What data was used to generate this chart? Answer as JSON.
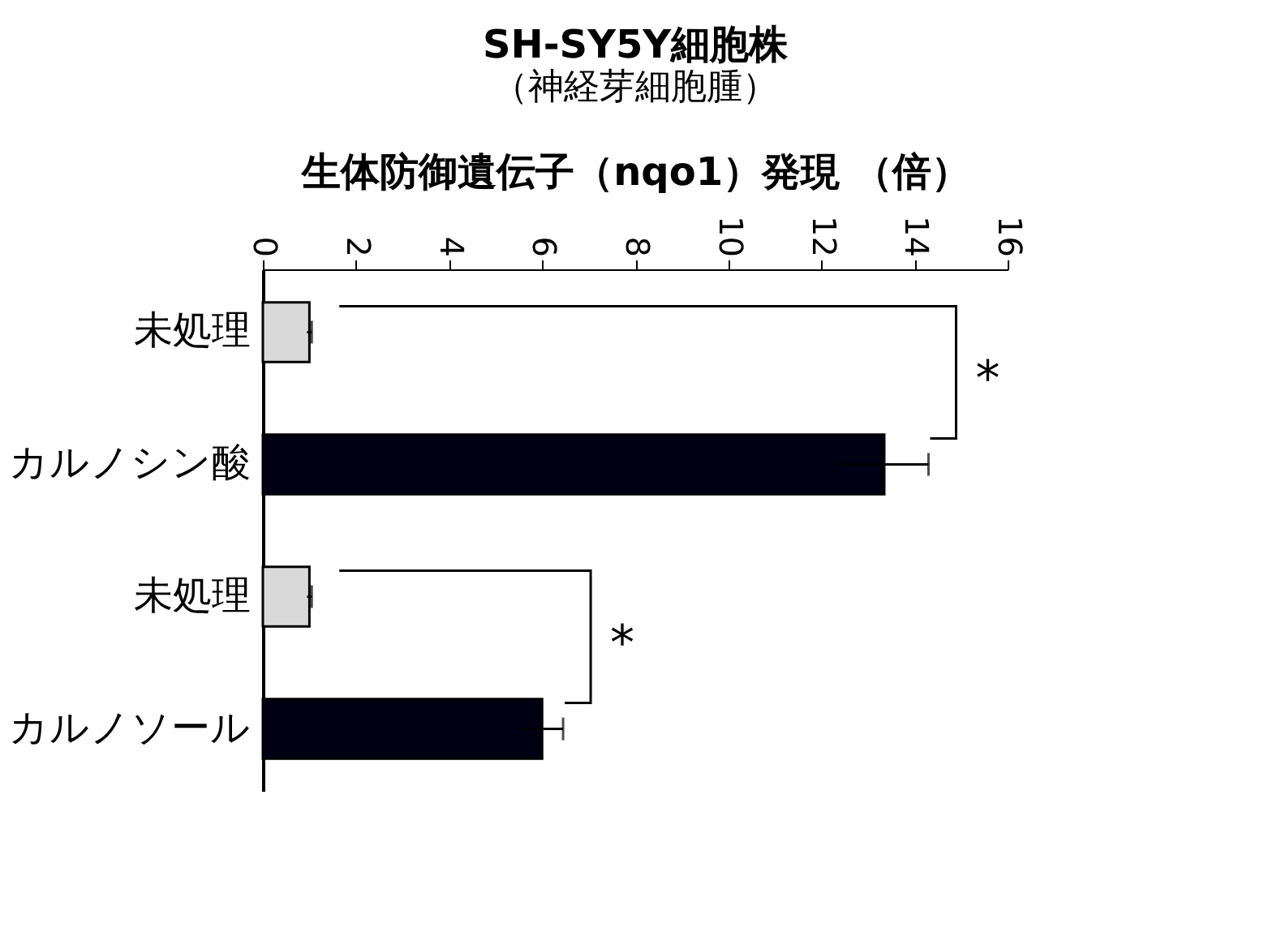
{
  "chart_data": {
    "type": "bar",
    "orientation": "horizontal",
    "title": "SH-SY5Y細胞株",
    "subtitle": "（神経芽細胞腫）",
    "xlabel": "生体防御遺伝子（nqo1）発現 （倍）",
    "categories": [
      "未処理",
      "カルノシン酸",
      null,
      "未処理",
      "カルノソール"
    ],
    "values": [
      1.0,
      13.35,
      null,
      1.0,
      6.0
    ],
    "errors": [
      0.05,
      0.95,
      null,
      0.05,
      0.45
    ],
    "colors": [
      "#d9d9d9",
      "#000014",
      "#ffffff",
      "#d9d9d9",
      "#000014"
    ],
    "xlim": [
      0,
      16
    ],
    "xticks": [
      0,
      2,
      4,
      6,
      8,
      10,
      12,
      14,
      16
    ],
    "annotations": [
      "*",
      "*"
    ]
  }
}
